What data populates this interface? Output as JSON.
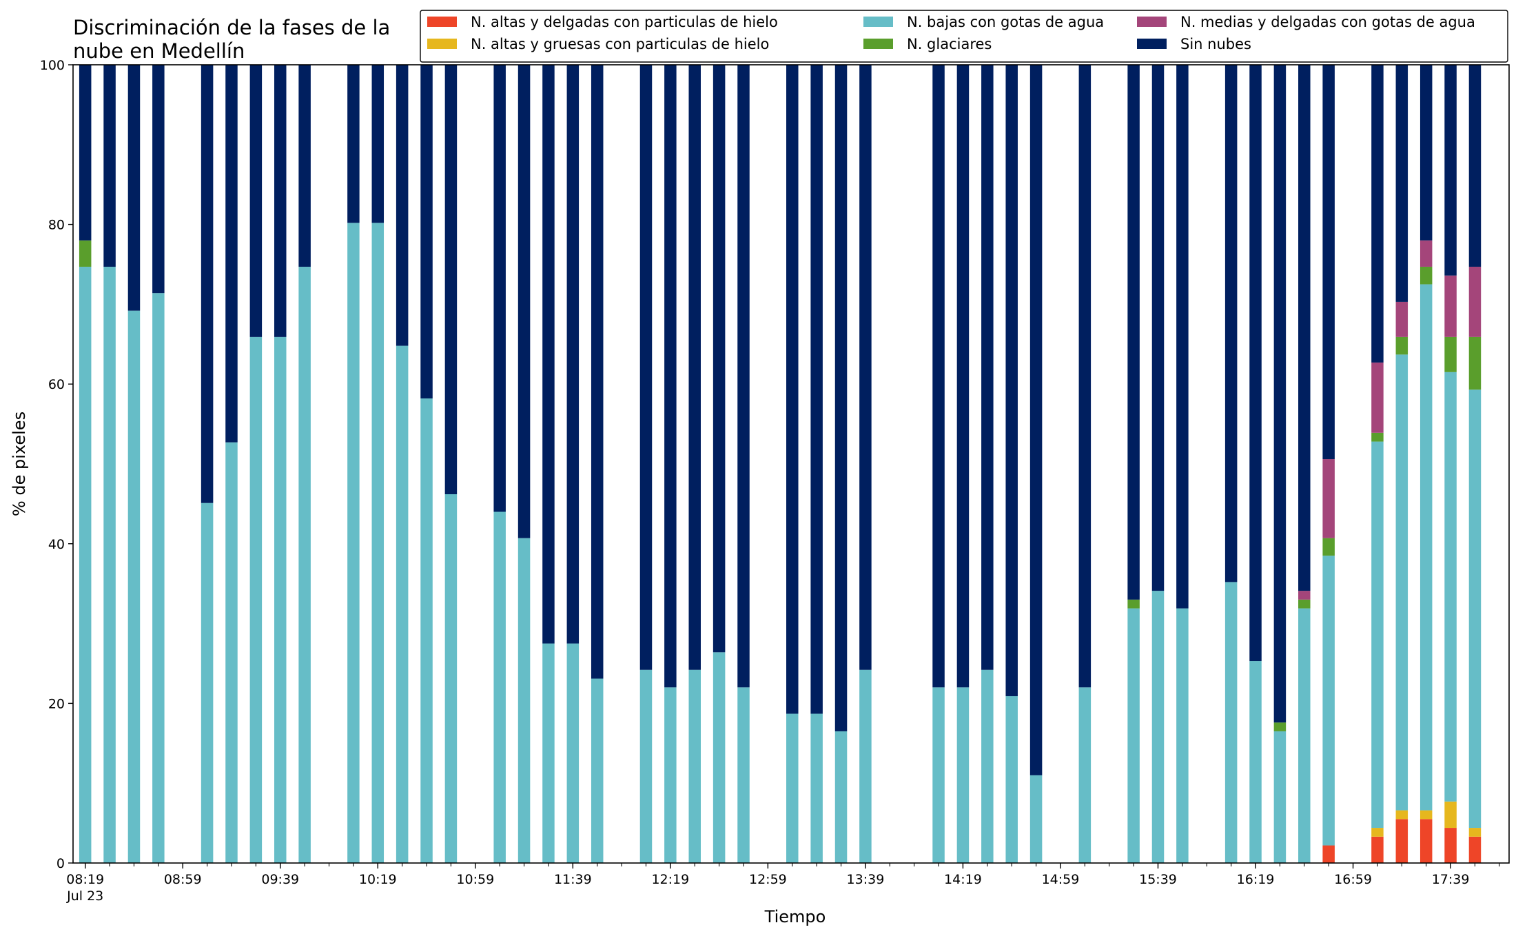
{
  "chart_data": {
    "type": "bar",
    "stacked": true,
    "title_lines": [
      "Discriminación de la fases de la",
      "nube en Medellín"
    ],
    "xlabel": "Tiempo",
    "ylabel": "% de pixeles",
    "ylim": [
      0,
      100
    ],
    "yticks": [
      0,
      20,
      40,
      60,
      80,
      100
    ],
    "grid": false,
    "legend_position": "top-right",
    "x_range_minutes": [
      494,
      1083
    ],
    "x_ticks_labeled": [
      {
        "minute": 499,
        "label": "08:19"
      },
      {
        "minute": 539,
        "label": "08:59"
      },
      {
        "minute": 579,
        "label": "09:39"
      },
      {
        "minute": 619,
        "label": "10:19"
      },
      {
        "minute": 659,
        "label": "10:59"
      },
      {
        "minute": 699,
        "label": "11:39"
      },
      {
        "minute": 739,
        "label": "12:19"
      },
      {
        "minute": 779,
        "label": "12:59"
      },
      {
        "minute": 819,
        "label": "13:39"
      },
      {
        "minute": 859,
        "label": "14:19"
      },
      {
        "minute": 899,
        "label": "14:59"
      },
      {
        "minute": 939,
        "label": "15:39"
      },
      {
        "minute": 979,
        "label": "16:19"
      },
      {
        "minute": 1019,
        "label": "16:59"
      },
      {
        "minute": 1059,
        "label": "17:39"
      }
    ],
    "x_tick_date_label": "Jul 23",
    "x_minor_step": 10,
    "series": [
      {
        "key": "alt_delg_hielo",
        "name": "N. altas y delgadas con particulas de hielo",
        "color": "#ee4528"
      },
      {
        "key": "alt_grue_hielo",
        "name": "N. altas y gruesas con particulas de hielo",
        "color": "#e6b71e"
      },
      {
        "key": "bajas_agua",
        "name": "N. bajas con gotas de agua",
        "color": "#66bdc7"
      },
      {
        "key": "glaciares",
        "name": "N. glaciares",
        "color": "#5a9e2c"
      },
      {
        "key": "medias_agua",
        "name": "N. medias y delgadas con gotas de agua",
        "color": "#a4457a"
      },
      {
        "key": "sin_nubes",
        "name": "Sin nubes",
        "color": "#001f5f"
      }
    ],
    "bars": [
      {
        "x": 499,
        "values": [
          0,
          0,
          74.7,
          3.3,
          0,
          22.0
        ]
      },
      {
        "x": 509,
        "values": [
          0,
          0,
          74.7,
          0,
          0,
          25.3
        ]
      },
      {
        "x": 519,
        "values": [
          0,
          0,
          69.2,
          0,
          0,
          30.8
        ]
      },
      {
        "x": 529,
        "values": [
          0,
          0,
          71.4,
          0,
          0,
          28.6
        ]
      },
      {
        "x": 549,
        "values": [
          0,
          0,
          45.1,
          0,
          0,
          54.9
        ]
      },
      {
        "x": 559,
        "values": [
          0,
          0,
          52.7,
          0,
          0,
          47.3
        ]
      },
      {
        "x": 569,
        "values": [
          0,
          0,
          65.9,
          0,
          0,
          34.1
        ]
      },
      {
        "x": 579,
        "values": [
          0,
          0,
          65.9,
          0,
          0,
          34.1
        ]
      },
      {
        "x": 589,
        "values": [
          0,
          0,
          74.7,
          0,
          0,
          25.3
        ]
      },
      {
        "x": 609,
        "values": [
          0,
          0,
          80.2,
          0,
          0,
          19.8
        ]
      },
      {
        "x": 619,
        "values": [
          0,
          0,
          80.2,
          0,
          0,
          19.8
        ]
      },
      {
        "x": 629,
        "values": [
          0,
          0,
          64.8,
          0,
          0,
          35.2
        ]
      },
      {
        "x": 639,
        "values": [
          0,
          0,
          58.2,
          0,
          0,
          41.8
        ]
      },
      {
        "x": 649,
        "values": [
          0,
          0,
          46.2,
          0,
          0,
          53.8
        ]
      },
      {
        "x": 669,
        "values": [
          0,
          0,
          44.0,
          0,
          0,
          56.0
        ]
      },
      {
        "x": 679,
        "values": [
          0,
          0,
          40.7,
          0,
          0,
          59.3
        ]
      },
      {
        "x": 689,
        "values": [
          0,
          0,
          27.5,
          0,
          0,
          72.5
        ]
      },
      {
        "x": 699,
        "values": [
          0,
          0,
          27.5,
          0,
          0,
          72.5
        ]
      },
      {
        "x": 709,
        "values": [
          0,
          0,
          23.1,
          0,
          0,
          76.9
        ]
      },
      {
        "x": 729,
        "values": [
          0,
          0,
          24.2,
          0,
          0,
          75.8
        ]
      },
      {
        "x": 739,
        "values": [
          0,
          0,
          22.0,
          0,
          0,
          78.0
        ]
      },
      {
        "x": 749,
        "values": [
          0,
          0,
          24.2,
          0,
          0,
          75.8
        ]
      },
      {
        "x": 759,
        "values": [
          0,
          0,
          26.4,
          0,
          0,
          73.6
        ]
      },
      {
        "x": 769,
        "values": [
          0,
          0,
          22.0,
          0,
          0,
          78.0
        ]
      },
      {
        "x": 789,
        "values": [
          0,
          0,
          18.7,
          0,
          0,
          81.3
        ]
      },
      {
        "x": 799,
        "values": [
          0,
          0,
          18.7,
          0,
          0,
          81.3
        ]
      },
      {
        "x": 809,
        "values": [
          0,
          0,
          16.5,
          0,
          0,
          83.5
        ]
      },
      {
        "x": 819,
        "values": [
          0,
          0,
          24.2,
          0,
          0,
          75.8
        ]
      },
      {
        "x": 849,
        "values": [
          0,
          0,
          22.0,
          0,
          0,
          78.0
        ]
      },
      {
        "x": 859,
        "values": [
          0,
          0,
          22.0,
          0,
          0,
          78.0
        ]
      },
      {
        "x": 869,
        "values": [
          0,
          0,
          24.2,
          0,
          0,
          75.8
        ]
      },
      {
        "x": 879,
        "values": [
          0,
          0,
          20.9,
          0,
          0,
          79.1
        ]
      },
      {
        "x": 889,
        "values": [
          0,
          0,
          11.0,
          0,
          0,
          89.0
        ]
      },
      {
        "x": 909,
        "values": [
          0,
          0,
          22.0,
          0,
          0,
          78.0
        ]
      },
      {
        "x": 929,
        "values": [
          0,
          0,
          31.9,
          1.1,
          0,
          67.0
        ]
      },
      {
        "x": 939,
        "values": [
          0,
          0,
          34.1,
          0,
          0,
          65.9
        ]
      },
      {
        "x": 949,
        "values": [
          0,
          0,
          31.9,
          0,
          0,
          68.1
        ]
      },
      {
        "x": 969,
        "values": [
          0,
          0,
          35.2,
          0,
          0,
          64.8
        ]
      },
      {
        "x": 979,
        "values": [
          0,
          0,
          25.3,
          0,
          0,
          74.7
        ]
      },
      {
        "x": 989,
        "values": [
          0,
          0,
          16.5,
          1.1,
          0,
          82.4
        ]
      },
      {
        "x": 999,
        "values": [
          0,
          0,
          31.9,
          1.1,
          1.1,
          65.9
        ]
      },
      {
        "x": 1009,
        "values": [
          2.2,
          0,
          36.3,
          2.2,
          9.9,
          49.4
        ]
      },
      {
        "x": 1029,
        "values": [
          3.3,
          1.1,
          48.4,
          1.1,
          8.8,
          37.3
        ]
      },
      {
        "x": 1039,
        "values": [
          5.5,
          1.1,
          57.1,
          2.2,
          4.4,
          29.7
        ]
      },
      {
        "x": 1049,
        "values": [
          5.5,
          1.1,
          65.9,
          2.2,
          3.3,
          22.0
        ]
      },
      {
        "x": 1059,
        "values": [
          4.4,
          3.3,
          53.8,
          4.4,
          7.7,
          26.4
        ]
      },
      {
        "x": 1069,
        "values": [
          3.3,
          1.1,
          54.9,
          6.6,
          8.8,
          25.3
        ]
      }
    ]
  }
}
